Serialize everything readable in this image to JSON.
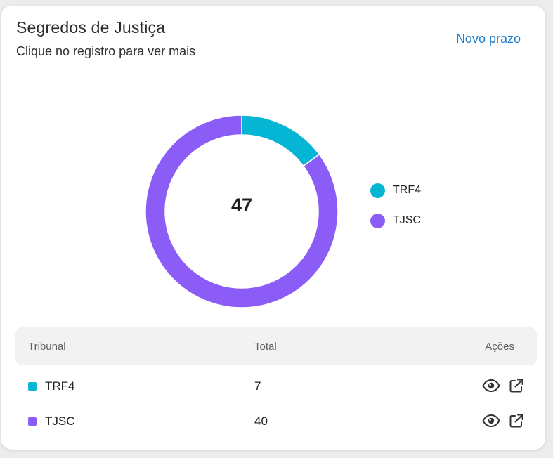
{
  "header": {
    "title": "Segredos de Justiça",
    "subtitle": "Clique no registro para ver mais",
    "new_link": "Novo prazo"
  },
  "colors": {
    "accent_link": "#1a7dcc",
    "trf4": "#05b6d4",
    "tjsc": "#8b5cf6",
    "card_bg": "#ffffff",
    "header_row_bg": "#f2f2f2"
  },
  "chart_data": {
    "type": "pie",
    "donut": true,
    "center_label": "47",
    "categories": [
      "TRF4",
      "TJSC"
    ],
    "values": [
      7,
      40
    ],
    "colors": [
      "#05b6d4",
      "#8b5cf6"
    ],
    "legend_position": "right"
  },
  "legend": [
    {
      "label": "TRF4",
      "color": "#05b6d4"
    },
    {
      "label": "TJSC",
      "color": "#8b5cf6"
    }
  ],
  "table": {
    "headers": {
      "tribunal": "Tribunal",
      "total": "Total",
      "acoes": "Ações"
    },
    "rows": [
      {
        "tribunal": "TRF4",
        "total": "7",
        "color": "#05b6d4",
        "icons": [
          "eye-icon",
          "external-link-icon"
        ]
      },
      {
        "tribunal": "TJSC",
        "total": "40",
        "color": "#8b5cf6",
        "icons": [
          "eye-icon",
          "external-link-icon"
        ]
      }
    ]
  }
}
